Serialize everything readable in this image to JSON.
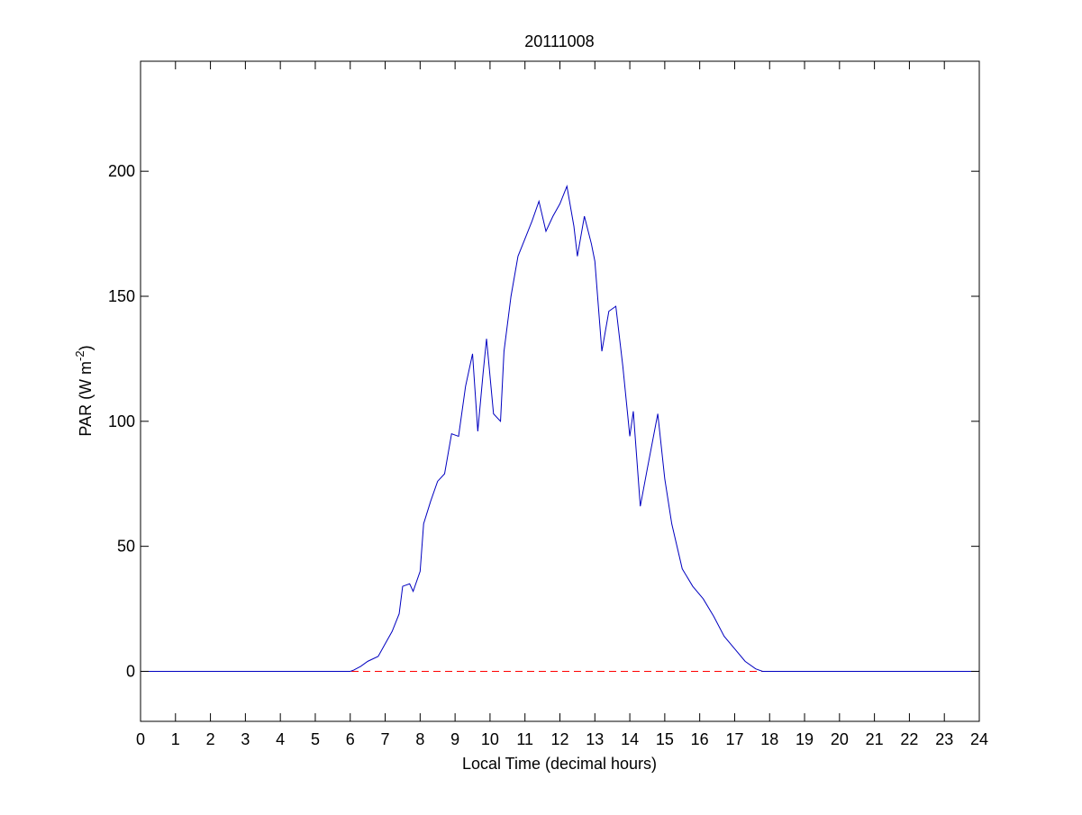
{
  "chart_data": {
    "type": "line",
    "title": "20111008",
    "xlabel": "Local Time (decimal hours)",
    "ylabel": {
      "text": "PAR (W m",
      "superscript": "-2",
      "suffix": ")"
    },
    "xlim": [
      0,
      24
    ],
    "xticks": [
      0,
      1,
      2,
      3,
      4,
      5,
      6,
      7,
      8,
      9,
      10,
      11,
      12,
      13,
      14,
      15,
      16,
      17,
      18,
      19,
      20,
      21,
      22,
      23,
      24
    ],
    "ylim": [
      -20,
      244
    ],
    "yticks": [
      0,
      50,
      100,
      150,
      200
    ],
    "grid": false,
    "reference_line": {
      "value": 0,
      "color": "#ff0000",
      "dashed": true
    },
    "series": [
      {
        "color": "#0000c0",
        "x": [
          0,
          6.0,
          6.1,
          6.3,
          6.5,
          6.8,
          7.0,
          7.2,
          7.4,
          7.5,
          7.7,
          7.8,
          8.0,
          8.1,
          8.3,
          8.5,
          8.7,
          8.9,
          9.1,
          9.3,
          9.5,
          9.65,
          9.8,
          9.9,
          10.1,
          10.3,
          10.4,
          10.6,
          10.8,
          11.0,
          11.2,
          11.4,
          11.6,
          11.8,
          12.0,
          12.2,
          12.4,
          12.5,
          12.7,
          12.9,
          13.0,
          13.2,
          13.4,
          13.6,
          13.8,
          14.0,
          14.1,
          14.3,
          14.5,
          14.8,
          15.0,
          15.2,
          15.5,
          15.8,
          16.1,
          16.4,
          16.7,
          17.0,
          17.3,
          17.6,
          17.8,
          24
        ],
        "values": [
          0,
          0,
          0.5,
          2,
          4,
          6,
          11,
          16,
          23,
          34,
          35,
          32,
          40,
          59,
          68,
          76,
          79,
          95,
          94,
          114,
          127,
          96,
          119,
          133,
          103,
          100,
          128,
          150,
          166,
          173,
          180,
          188,
          176,
          182,
          187,
          194,
          178,
          166,
          182,
          171,
          164,
          128,
          144,
          146,
          122,
          94,
          104,
          66,
          81,
          103,
          77,
          59,
          41,
          34,
          29,
          22,
          14,
          9,
          4,
          1,
          0,
          0
        ]
      }
    ]
  }
}
